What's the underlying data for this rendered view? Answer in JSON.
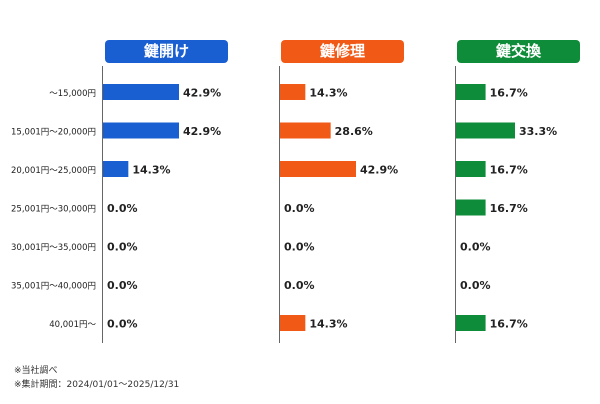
{
  "chart_data": {
    "type": "bar",
    "categories": [
      "～15,000円",
      "15,001円～20,000円",
      "20,001円～25,000円",
      "25,001円～30,000円",
      "30,001円～35,000円",
      "35,001円～40,000円",
      "40,001円～"
    ],
    "panels": [
      {
        "title": "鍵開け",
        "color": "#1a5fd1",
        "values": [
          42.9,
          42.9,
          14.3,
          0.0,
          0.0,
          0.0,
          0.0
        ]
      },
      {
        "title": "鍵修理",
        "color": "#f15a16",
        "values": [
          14.3,
          28.6,
          42.9,
          0.0,
          0.0,
          0.0,
          14.3
        ]
      },
      {
        "title": "鍵交換",
        "color": "#0f8c39",
        "values": [
          16.7,
          33.3,
          16.7,
          16.7,
          0.0,
          0.0,
          16.7
        ]
      }
    ],
    "value_suffix": "%",
    "xlim": [
      0,
      100
    ]
  },
  "notes": [
    "※当社調べ",
    "※集計期間：2024/01/01～2025/12/31"
  ]
}
